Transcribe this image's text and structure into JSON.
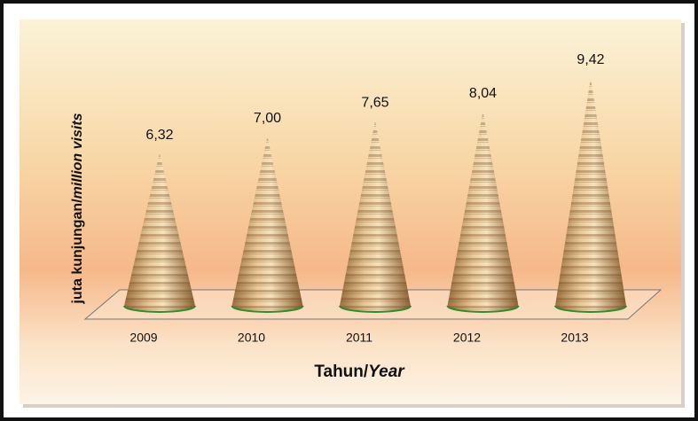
{
  "chart_data": {
    "type": "cone",
    "categories": [
      "2009",
      "2010",
      "2011",
      "2012",
      "2013"
    ],
    "values": [
      6.32,
      7.0,
      7.65,
      8.04,
      9.42
    ],
    "value_labels": [
      "6,32",
      "7,00",
      "7,65",
      "8,04",
      "9,42"
    ],
    "y_label": [
      "juta kunjungan/",
      "million visits"
    ],
    "x_label": [
      "Tahun/",
      "Year"
    ]
  }
}
